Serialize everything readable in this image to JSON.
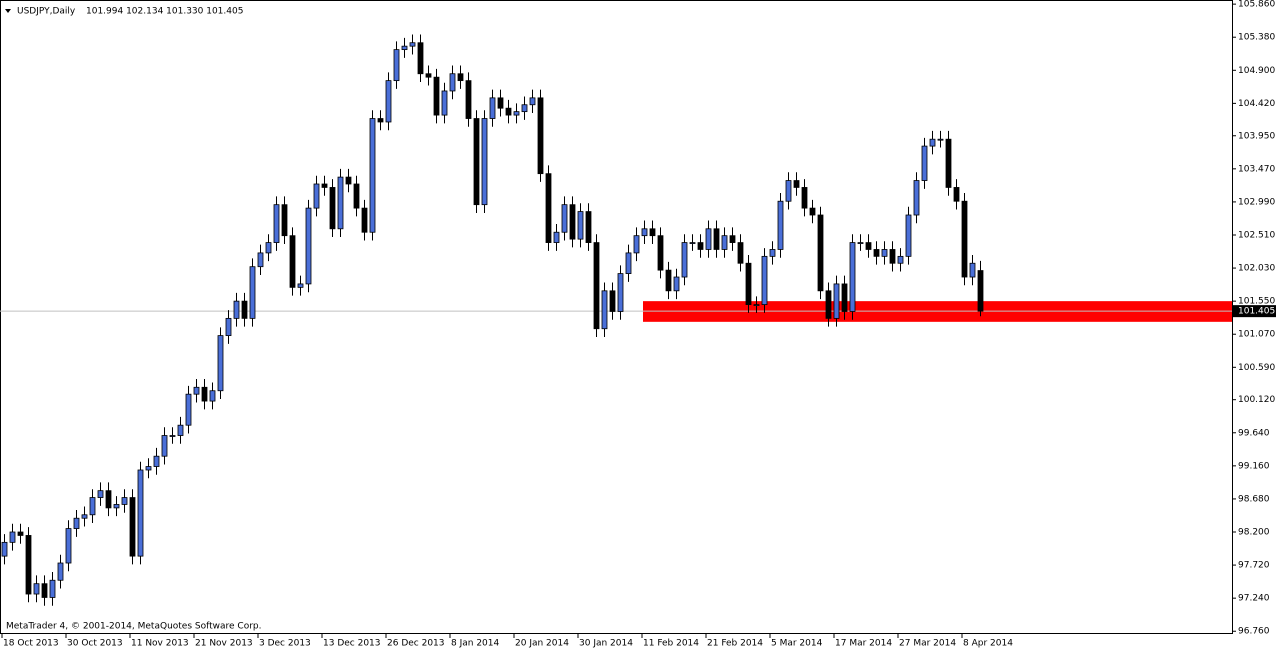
{
  "chart_data": {
    "type": "candlestick",
    "symbol": "USDJPY,Daily",
    "ohlc_text": "101.994 102.134 101.330 101.405",
    "footer": "MetaTrader 4, © 2001-2014, MetaQuotes Software Corp.",
    "up_color": "#4a6fd8",
    "down_color": "#000000",
    "categories": [
      "18 Oct 2013",
      null,
      null,
      null,
      null,
      null,
      null,
      null,
      "30 Oct 2013",
      null,
      null,
      null,
      null,
      null,
      null,
      null,
      "11 Nov 2013",
      null,
      null,
      null,
      null,
      null,
      null,
      null,
      "21 Nov 2013",
      null,
      null,
      null,
      null,
      null,
      null,
      null,
      "3 Dec 2013",
      null,
      null,
      null,
      null,
      null,
      null,
      null,
      "13 Dec 2013",
      null,
      null,
      null,
      null,
      null,
      null,
      null,
      "26 Dec 2013",
      null,
      null,
      null,
      null,
      null,
      null,
      null,
      "8 Jan 2014",
      null,
      null,
      null,
      null,
      null,
      null,
      null,
      "20 Jan 2014",
      null,
      null,
      null,
      null,
      null,
      null,
      null,
      "30 Jan 2014",
      null,
      null,
      null,
      null,
      null,
      null,
      null,
      "11 Feb 2014",
      null,
      null,
      null,
      null,
      null,
      null,
      null,
      "21 Feb 2014",
      null,
      null,
      null,
      null,
      null,
      null,
      null,
      "5 Mar 2014",
      null,
      null,
      null,
      null,
      null,
      null,
      null,
      "17 Mar 2014",
      null,
      null,
      null,
      null,
      null,
      null,
      null,
      "27 Mar 2014",
      null,
      null,
      null,
      null,
      null,
      null,
      null,
      "8 Apr 2014",
      null,
      null
    ],
    "open": [
      97.85,
      98.05,
      98.2,
      98.15,
      97.3,
      97.45,
      97.25,
      97.5,
      97.75,
      98.25,
      98.4,
      98.45,
      98.7,
      98.8,
      98.55,
      98.6,
      98.7,
      97.85,
      99.1,
      99.15,
      99.3,
      99.6,
      99.6,
      99.75,
      100.2,
      100.3,
      100.1,
      100.25,
      101.05,
      101.3,
      101.55,
      101.3,
      102.05,
      102.25,
      102.4,
      102.95,
      102.5,
      101.75,
      101.8,
      102.9,
      103.25,
      103.2,
      102.6,
      103.35,
      103.25,
      102.9,
      102.55,
      104.2,
      104.15,
      104.75,
      105.2,
      105.25,
      105.3,
      104.85,
      104.8,
      104.25,
      104.6,
      104.85,
      104.75,
      104.2,
      102.95,
      104.2,
      104.5,
      104.35,
      104.25,
      104.3,
      104.4,
      104.5,
      103.4,
      102.4,
      102.55,
      102.95,
      102.45,
      102.85,
      102.4,
      101.15,
      101.7,
      101.4,
      101.95,
      102.25,
      102.5,
      102.6,
      102.5,
      102.0,
      101.7,
      101.9,
      102.4,
      102.4,
      102.3,
      102.6,
      102.3,
      102.5,
      102.4,
      102.1,
      101.5,
      101.5,
      102.2,
      102.3,
      103.0,
      103.3,
      103.2,
      102.9,
      102.8,
      101.7,
      101.3,
      101.8,
      101.4,
      102.4,
      102.4,
      102.3,
      102.2,
      102.3,
      102.1,
      102.2,
      102.8,
      103.3,
      103.8,
      103.9,
      103.9,
      103.2,
      103.0,
      101.9,
      101.994
    ],
    "high": [
      98.17,
      98.32,
      98.32,
      98.27,
      97.57,
      97.57,
      97.62,
      97.87,
      98.37,
      98.52,
      98.57,
      98.82,
      98.92,
      98.92,
      98.72,
      98.82,
      98.82,
      99.22,
      99.27,
      99.42,
      99.72,
      99.72,
      99.87,
      100.32,
      100.42,
      100.42,
      100.37,
      101.17,
      101.42,
      101.67,
      101.67,
      102.17,
      102.37,
      102.52,
      103.07,
      103.07,
      102.62,
      101.92,
      103.02,
      103.37,
      103.37,
      103.32,
      103.47,
      103.47,
      103.37,
      103.02,
      104.32,
      104.32,
      104.87,
      105.32,
      105.37,
      105.42,
      105.42,
      104.97,
      104.92,
      104.72,
      104.97,
      104.97,
      104.87,
      104.32,
      104.32,
      104.62,
      104.62,
      104.47,
      104.42,
      104.52,
      104.62,
      104.62,
      103.52,
      102.67,
      103.07,
      103.07,
      102.97,
      102.97,
      102.52,
      101.82,
      101.82,
      102.07,
      102.37,
      102.62,
      102.72,
      102.72,
      102.62,
      102.12,
      102.02,
      102.52,
      102.52,
      102.52,
      102.72,
      102.72,
      102.62,
      102.62,
      102.52,
      102.22,
      101.62,
      102.32,
      102.42,
      103.12,
      103.42,
      103.42,
      103.32,
      103.02,
      102.92,
      101.82,
      101.92,
      101.92,
      102.52,
      102.52,
      102.52,
      102.42,
      102.42,
      102.42,
      102.32,
      102.92,
      103.42,
      103.92,
      104.02,
      104.02,
      104.02,
      103.32,
      103.12,
      102.22,
      102.134
    ],
    "low": [
      97.73,
      97.93,
      98.03,
      97.18,
      97.18,
      97.13,
      97.13,
      97.38,
      97.63,
      98.13,
      98.28,
      98.33,
      98.58,
      98.43,
      98.43,
      98.48,
      97.73,
      97.73,
      98.98,
      99.03,
      99.18,
      99.48,
      99.48,
      99.63,
      100.08,
      99.98,
      99.98,
      100.13,
      100.93,
      101.18,
      101.18,
      101.18,
      101.93,
      102.13,
      102.28,
      102.38,
      101.63,
      101.63,
      101.68,
      102.78,
      103.08,
      102.48,
      102.48,
      103.13,
      102.78,
      102.43,
      102.43,
      104.03,
      104.03,
      104.63,
      105.08,
      105.13,
      104.73,
      104.68,
      104.13,
      104.13,
      104.48,
      104.63,
      104.08,
      102.83,
      102.83,
      104.08,
      104.23,
      104.13,
      104.13,
      104.18,
      104.28,
      103.28,
      102.28,
      102.28,
      102.43,
      102.33,
      102.33,
      102.28,
      101.03,
      101.03,
      101.28,
      101.28,
      101.83,
      102.13,
      102.38,
      102.38,
      101.88,
      101.58,
      101.58,
      101.78,
      102.28,
      102.18,
      102.18,
      102.18,
      102.18,
      102.28,
      101.98,
      101.38,
      101.38,
      101.38,
      102.08,
      102.18,
      102.88,
      103.08,
      102.78,
      102.68,
      101.58,
      101.18,
      101.18,
      101.28,
      101.28,
      102.28,
      102.18,
      102.08,
      102.08,
      101.98,
      101.98,
      102.08,
      102.68,
      103.18,
      103.68,
      103.78,
      103.08,
      102.88,
      101.78,
      101.78,
      101.33
    ],
    "close": [
      98.05,
      98.2,
      98.15,
      97.3,
      97.45,
      97.25,
      97.5,
      97.75,
      98.25,
      98.4,
      98.45,
      98.7,
      98.8,
      98.55,
      98.6,
      98.7,
      97.85,
      99.1,
      99.15,
      99.3,
      99.6,
      99.6,
      99.75,
      100.2,
      100.3,
      100.1,
      100.25,
      101.05,
      101.3,
      101.55,
      101.3,
      102.05,
      102.25,
      102.4,
      102.95,
      102.5,
      101.75,
      101.8,
      102.9,
      103.25,
      103.2,
      102.6,
      103.35,
      103.25,
      102.9,
      102.55,
      104.2,
      104.15,
      104.75,
      105.2,
      105.25,
      105.3,
      104.85,
      104.8,
      104.25,
      104.6,
      104.85,
      104.75,
      104.2,
      102.95,
      104.2,
      104.5,
      104.35,
      104.25,
      104.3,
      104.4,
      104.5,
      103.4,
      102.4,
      102.55,
      102.95,
      102.45,
      102.85,
      102.4,
      101.15,
      101.7,
      101.4,
      101.95,
      102.25,
      102.5,
      102.6,
      102.5,
      102.0,
      101.7,
      101.9,
      102.4,
      102.4,
      102.3,
      102.6,
      102.3,
      102.5,
      102.4,
      102.1,
      101.5,
      101.5,
      102.2,
      102.3,
      103.0,
      103.3,
      103.2,
      102.9,
      102.8,
      101.7,
      101.3,
      101.8,
      101.4,
      102.4,
      102.4,
      102.3,
      102.2,
      102.3,
      102.1,
      102.2,
      102.8,
      103.3,
      103.8,
      103.9,
      103.9,
      103.2,
      103.0,
      101.9,
      102.1,
      101.405
    ],
    "ylim": [
      96.72,
      105.92
    ],
    "yticks": [
      {
        "value": 105.86,
        "label": "105.860"
      },
      {
        "value": 105.38,
        "label": "105.380"
      },
      {
        "value": 104.9,
        "label": "104.900"
      },
      {
        "value": 104.42,
        "label": "104.420"
      },
      {
        "value": 103.95,
        "label": "103.950"
      },
      {
        "value": 103.47,
        "label": "103.470"
      },
      {
        "value": 102.99,
        "label": "102.990"
      },
      {
        "value": 102.51,
        "label": "102.510"
      },
      {
        "value": 102.03,
        "label": "102.030"
      },
      {
        "value": 101.55,
        "label": "101.550"
      },
      {
        "value": 101.07,
        "label": "101.070"
      },
      {
        "value": 100.59,
        "label": "100.590"
      },
      {
        "value": 100.12,
        "label": "100.120"
      },
      {
        "value": 99.64,
        "label": "99.640"
      },
      {
        "value": 99.16,
        "label": "99.160"
      },
      {
        "value": 98.68,
        "label": "98.680"
      },
      {
        "value": 98.2,
        "label": "98.200"
      },
      {
        "value": 97.72,
        "label": "97.720"
      },
      {
        "value": 97.24,
        "label": "97.240"
      },
      {
        "value": 96.76,
        "label": "96.760"
      }
    ],
    "zone": {
      "from": 101.25,
      "to": 101.55,
      "start_category": "11 Feb 2014",
      "color": "#ff0000"
    }
  }
}
